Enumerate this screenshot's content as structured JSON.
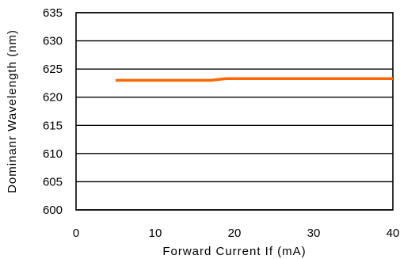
{
  "chart_data": {
    "type": "line",
    "xlabel": "Forward Current If (mA)",
    "ylabel": "Dominanr Wavelength (nm)",
    "xlim": [
      0,
      40
    ],
    "ylim": [
      600,
      635
    ],
    "x_ticks": [
      "0",
      "10",
      "20",
      "30",
      "40"
    ],
    "y_ticks": [
      "600",
      "605",
      "610",
      "615",
      "620",
      "625",
      "630",
      "635"
    ],
    "grid": "horizontal",
    "series": [
      {
        "color": "#ff6600",
        "x": [
          5,
          10,
          15,
          17,
          19,
          25,
          30,
          35,
          40
        ],
        "y": [
          623.0,
          623.0,
          623.0,
          623.0,
          623.3,
          623.3,
          623.3,
          623.3,
          623.3
        ]
      }
    ]
  }
}
